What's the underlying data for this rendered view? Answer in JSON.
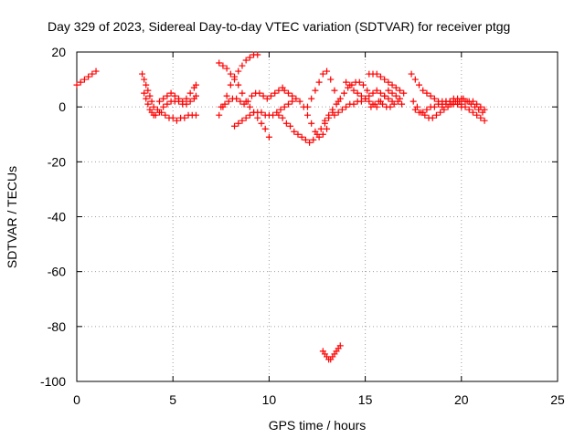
{
  "chart_data": {
    "type": "scatter",
    "title": "Day 329 of 2023, Sidereal Day-to-day VTEC variation (SDTVAR) for receiver ptgg",
    "xlabel": "GPS time / hours",
    "ylabel": "SDTVAR / TECUs",
    "xlim": [
      0,
      25
    ],
    "ylim": [
      -100,
      20
    ],
    "xticks": [
      0,
      5,
      10,
      15,
      20,
      25
    ],
    "yticks": [
      20,
      0,
      -20,
      -40,
      -60,
      -80,
      -100
    ],
    "grid": true,
    "marker": "plus",
    "color": "#ff0000",
    "series": [
      {
        "name": "t0",
        "x": [
          0.0,
          0.2,
          0.4,
          0.6,
          0.8,
          1.0
        ],
        "y": [
          8,
          9,
          10,
          11,
          12,
          13
        ]
      },
      {
        "name": "t1",
        "x": [
          3.4,
          3.5,
          3.6,
          3.7,
          3.8,
          3.9,
          4.0,
          4.2,
          4.4,
          4.6,
          4.8,
          5.0,
          5.2,
          5.4,
          5.6,
          5.8,
          6.0,
          6.2
        ],
        "y": [
          12,
          10,
          8,
          6,
          4,
          2,
          0,
          -1,
          -2,
          -3,
          -4,
          -4,
          -5,
          -4,
          -4,
          -3,
          -3,
          -3
        ]
      },
      {
        "name": "t2",
        "x": [
          3.5,
          3.6,
          3.7,
          3.8,
          3.9,
          4.0,
          4.1,
          4.3,
          4.5,
          4.7,
          4.9,
          5.1,
          5.3,
          5.5,
          5.7,
          5.9,
          6.1,
          6.2
        ],
        "y": [
          5,
          3,
          1,
          -1,
          -2,
          -3,
          -3,
          -2,
          0,
          1,
          2,
          2,
          2,
          1,
          1,
          2,
          3,
          4
        ]
      },
      {
        "name": "t3",
        "x": [
          4.3,
          4.5,
          4.7,
          4.9,
          5.1,
          5.3,
          5.5,
          5.7,
          5.9,
          6.1,
          6.2
        ],
        "y": [
          2,
          3,
          4,
          5,
          4,
          3,
          2,
          3,
          5,
          7,
          8
        ]
      },
      {
        "name": "t4",
        "x": [
          7.4,
          7.6,
          7.8,
          8.0,
          8.2,
          8.4,
          8.6,
          8.8,
          9.0,
          9.2,
          9.4
        ],
        "y": [
          -3,
          0,
          4,
          8,
          11,
          13,
          15,
          17,
          18,
          19,
          19
        ]
      },
      {
        "name": "t5",
        "x": [
          7.4,
          7.6,
          7.8,
          8.0,
          8.2,
          8.4,
          8.6,
          8.8,
          9.0,
          9.2,
          9.4,
          9.6,
          9.8,
          10.0
        ],
        "y": [
          16,
          15,
          14,
          12,
          10,
          8,
          5,
          2,
          0,
          -2,
          -4,
          -6,
          -8,
          -11
        ]
      },
      {
        "name": "t6",
        "x": [
          7.5,
          7.7,
          7.9,
          8.1,
          8.3,
          8.5,
          8.7,
          8.9,
          9.1,
          9.3,
          9.5,
          9.7,
          9.9,
          10.1,
          10.3,
          10.5,
          10.7
        ],
        "y": [
          0,
          1,
          2,
          3,
          3,
          2,
          1,
          2,
          4,
          5,
          5,
          4,
          3,
          4,
          5,
          6,
          7
        ]
      },
      {
        "name": "t7",
        "x": [
          8.2,
          8.4,
          8.6,
          8.8,
          9.0,
          9.2,
          9.4,
          9.6,
          9.8,
          10.0,
          10.2,
          10.4,
          10.6,
          10.8,
          11.0,
          11.2
        ],
        "y": [
          -7,
          -6,
          -5,
          -4,
          -3,
          -2,
          -2,
          -2,
          -3,
          -3,
          -3,
          -2,
          -1,
          0,
          1,
          2
        ]
      },
      {
        "name": "t8",
        "x": [
          10.5,
          10.7,
          10.9,
          11.1,
          11.3,
          11.5,
          11.7,
          11.9,
          12.1,
          12.3,
          12.5,
          12.7,
          12.9,
          13.1,
          13.3
        ],
        "y": [
          -3,
          -4,
          -6,
          -7,
          -9,
          -10,
          -11,
          -12,
          -13,
          -12,
          -10,
          -8,
          -6,
          -4,
          -2
        ]
      },
      {
        "name": "t9",
        "x": [
          10.8,
          11.0,
          11.2,
          11.4,
          11.6,
          11.8,
          12.0,
          12.2,
          12.4,
          12.6,
          12.8,
          13.0
        ],
        "y": [
          6,
          5,
          4,
          3,
          2,
          0,
          -3,
          -6,
          -9,
          -11,
          -10,
          -8
        ]
      },
      {
        "name": "t10",
        "x": [
          12.0,
          12.2,
          12.4,
          12.6,
          12.8,
          13.0,
          13.2,
          13.4,
          13.6
        ],
        "y": [
          0,
          3,
          6,
          9,
          12,
          13,
          10,
          6,
          2
        ]
      },
      {
        "name": "t11",
        "x": [
          12.9,
          13.1,
          13.3,
          13.5,
          13.7,
          13.9,
          14.1,
          14.3,
          14.5,
          14.7,
          14.9,
          15.1
        ],
        "y": [
          -5,
          -3,
          -1,
          1,
          3,
          5,
          7,
          8,
          9,
          9,
          8,
          6
        ]
      },
      {
        "name": "t12",
        "x": [
          13.4,
          13.6,
          13.8,
          14.0,
          14.2,
          14.4,
          14.6,
          14.8,
          15.0,
          15.2,
          15.4,
          15.6,
          15.8,
          16.0,
          16.2,
          16.4
        ],
        "y": [
          -3,
          -2,
          -1,
          0,
          1,
          1,
          2,
          2,
          3,
          4,
          5,
          6,
          5,
          4,
          3,
          2
        ]
      },
      {
        "name": "t13",
        "x": [
          14.0,
          14.2,
          14.4,
          14.6,
          14.8,
          15.0,
          15.2,
          15.4,
          15.6,
          15.8,
          16.0,
          16.2,
          16.4,
          16.6,
          16.8
        ],
        "y": [
          9,
          8,
          6,
          5,
          4,
          3,
          2,
          1,
          0,
          2,
          4,
          6,
          5,
          4,
          3
        ]
      },
      {
        "name": "t14",
        "x": [
          15.2,
          15.4,
          15.6,
          15.8,
          16.0,
          16.2,
          16.4,
          16.6,
          16.8,
          17.0
        ],
        "y": [
          12,
          12,
          12,
          11,
          10,
          9,
          8,
          7,
          6,
          5
        ]
      },
      {
        "name": "t15",
        "x": [
          15.3,
          15.5,
          15.7,
          15.9,
          16.1,
          16.3,
          16.5,
          16.7,
          16.9
        ],
        "y": [
          0,
          1,
          2,
          1,
          0,
          0,
          1,
          2,
          1
        ]
      },
      {
        "name": "t16",
        "x": [
          17.4,
          17.6,
          17.8,
          18.0,
          18.2,
          18.4,
          18.6,
          18.8,
          19.0,
          19.2,
          19.4,
          19.6,
          19.8,
          20.0
        ],
        "y": [
          12,
          10,
          8,
          6,
          5,
          4,
          3,
          2,
          2,
          2,
          1,
          1,
          1,
          0
        ]
      },
      {
        "name": "t17",
        "x": [
          17.5,
          17.7,
          17.9,
          18.1,
          18.3,
          18.5,
          18.7,
          18.9,
          19.1,
          19.3,
          19.5,
          19.7,
          19.9,
          20.1,
          20.3,
          20.5,
          20.7,
          20.9,
          21.1
        ],
        "y": [
          2,
          0,
          -2,
          -3,
          -4,
          -4,
          -3,
          -2,
          -1,
          0,
          1,
          2,
          2,
          3,
          2,
          1,
          0,
          -1,
          -2
        ]
      },
      {
        "name": "t18",
        "x": [
          17.6,
          17.8,
          18.0,
          18.2,
          18.4,
          18.6,
          18.8,
          19.0,
          19.2,
          19.4,
          19.6,
          19.8,
          20.0,
          20.2,
          20.4,
          20.6,
          20.8,
          21.0,
          21.2
        ],
        "y": [
          -1,
          -2,
          -2,
          -1,
          0,
          0,
          1,
          1,
          2,
          2,
          2,
          1,
          1,
          0,
          -1,
          -2,
          -3,
          -4,
          -5
        ]
      },
      {
        "name": "t19",
        "x": [
          19.0,
          19.2,
          19.4,
          19.6,
          19.8,
          20.0,
          20.2,
          20.4,
          20.6,
          20.8,
          21.0,
          21.2
        ],
        "y": [
          0,
          1,
          2,
          3,
          3,
          3,
          2,
          2,
          2,
          1,
          0,
          -1
        ]
      },
      {
        "name": "t20",
        "x": [
          12.8,
          12.9,
          13.0,
          13.1,
          13.2,
          13.3,
          13.4,
          13.5,
          13.6,
          13.7
        ],
        "y": [
          -89,
          -90,
          -91,
          -92,
          -92,
          -91,
          -90,
          -89,
          -88,
          -87
        ]
      }
    ]
  }
}
